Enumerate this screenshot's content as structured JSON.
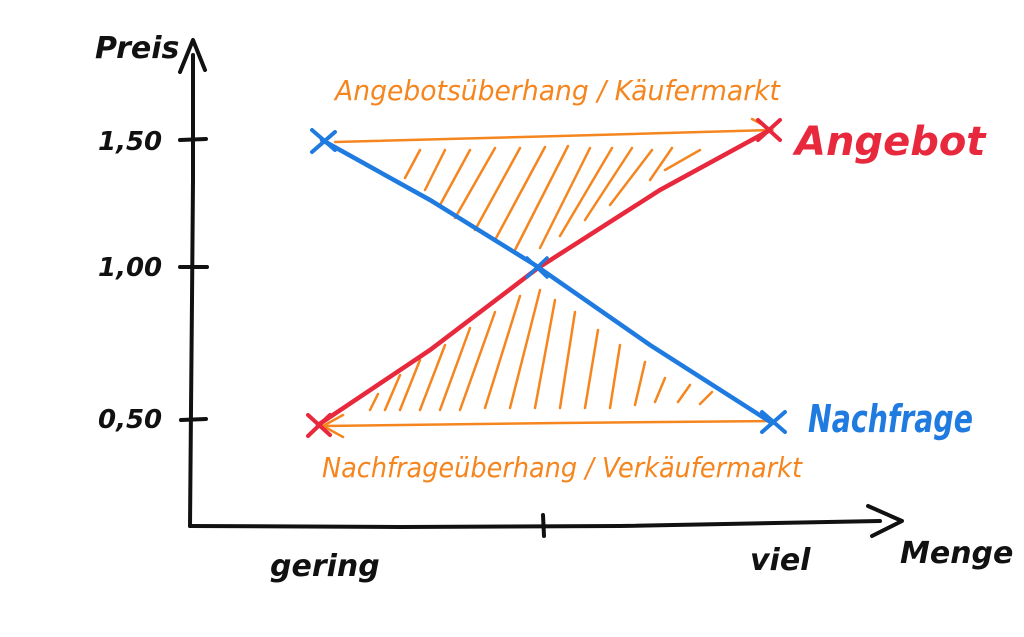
{
  "axes": {
    "y_label": "Preis",
    "x_label": "Menge",
    "y_ticks": [
      "1,50",
      "1,00",
      "0,50"
    ],
    "x_ticks": [
      "gering",
      "viel"
    ]
  },
  "curves": {
    "supply_label": "Angebot",
    "demand_label": "Nachfrage",
    "supply_color": "#e8283c",
    "demand_color": "#1f7be0"
  },
  "regions": {
    "surplus_label": "Angebotsüberhang / Käufermarkt",
    "shortage_label": "Nachfrageüberhang / Verkäufermarkt",
    "color": "#f5861f"
  },
  "colors": {
    "axis": "#111111"
  }
}
